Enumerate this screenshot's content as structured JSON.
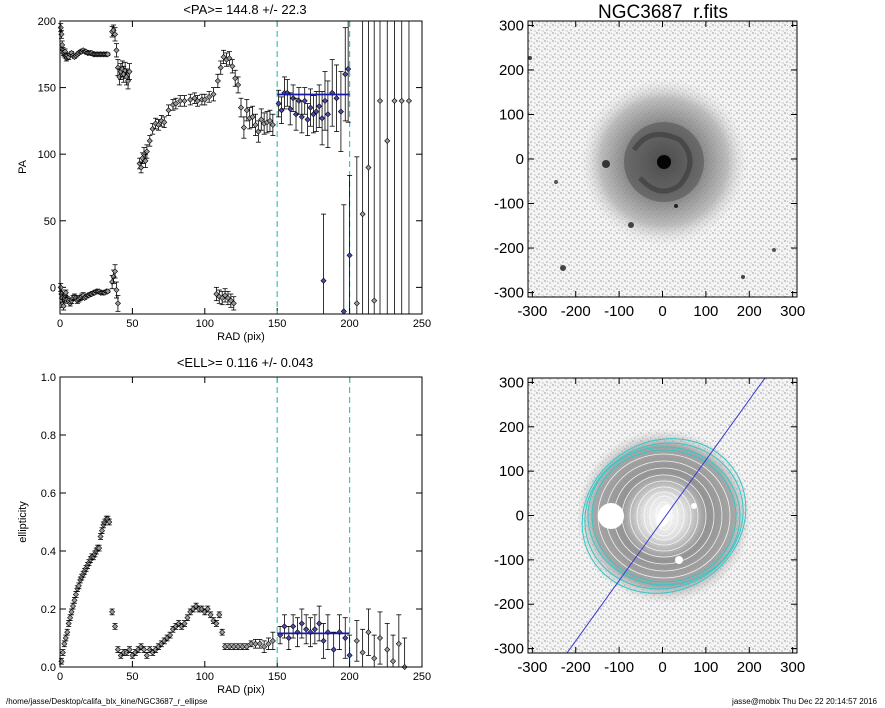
{
  "footer": {
    "path": "/home/jasse/Desktop/califa_blx_kine/NGC3687_r_ellipse",
    "stamp": "jasse@mobix  Thu Dec 22 20:14:57 2016"
  },
  "colors": {
    "cyan": "#33c8c8",
    "blue": "#1a1aa8",
    "mark_fill": "#999999"
  },
  "chart_data": [
    {
      "type": "scatter",
      "title": "<PA>= 144.8 +/-  22.3",
      "xlabel": "RAD (pix)",
      "ylabel": "PA",
      "xlim": [
        0,
        250
      ],
      "ylim": [
        -20,
        200
      ],
      "xticks": [
        0,
        50,
        100,
        150,
        200,
        250
      ],
      "yticks": [
        0,
        50,
        100,
        150,
        200
      ],
      "vlines_cyan_dashed": [
        150,
        200
      ],
      "mean_line": {
        "x": [
          150,
          200
        ],
        "y": 144.8
      },
      "series": [
        {
          "x": [
            0.5,
            1,
            1.5,
            2,
            2.5,
            3,
            3.5,
            4,
            4.5,
            5,
            6,
            7,
            8,
            9,
            10,
            11,
            12,
            13,
            14,
            15,
            16,
            17,
            18,
            19,
            20,
            21,
            22,
            23,
            24,
            25,
            26,
            27,
            28,
            29,
            30,
            31,
            32,
            33
          ],
          "y": [
            195,
            190,
            182,
            178,
            176,
            175,
            177,
            174,
            172,
            174,
            173,
            175,
            176,
            174,
            173,
            174,
            175,
            176,
            177,
            177,
            178,
            177,
            177,
            176,
            176,
            176,
            176,
            175,
            175,
            175,
            175,
            175,
            175,
            175,
            175,
            175,
            175,
            175
          ],
          "err": [
            3,
            3,
            3,
            2,
            2,
            2,
            2,
            2,
            2,
            2,
            2,
            1,
            1,
            1,
            1,
            1,
            1,
            1,
            1,
            1,
            1,
            1,
            1,
            1,
            1,
            1,
            1,
            1,
            1,
            1,
            1,
            1,
            1,
            1,
            1,
            1,
            1,
            1
          ]
        },
        {
          "x": [
            0.5,
            1,
            1.5,
            2,
            2.5,
            3,
            3.5,
            4,
            5,
            6,
            7,
            8,
            9,
            10,
            11,
            12,
            13,
            14,
            15,
            16,
            17,
            18,
            19,
            20,
            21,
            22,
            23,
            24,
            25,
            26,
            27,
            28,
            29,
            30,
            31,
            32,
            33
          ],
          "y": [
            0,
            -5,
            -8,
            -12,
            -14,
            -8,
            -6,
            -4,
            -9,
            -10,
            -12,
            -10,
            -8,
            -7,
            -8,
            -10,
            -9,
            -8,
            -7,
            -6,
            -8,
            -7,
            -6,
            -6,
            -5,
            -5,
            -4,
            -4,
            -3,
            -3,
            -3,
            -4,
            -4,
            -4,
            -4,
            -3,
            -3
          ],
          "err": [
            3,
            3,
            3,
            3,
            3,
            3,
            2,
            2,
            2,
            2,
            2,
            2,
            2,
            2,
            2,
            2,
            2,
            2,
            2,
            2,
            1,
            1,
            1,
            1,
            1,
            1,
            1,
            1,
            1,
            1,
            1,
            1,
            1,
            1,
            1,
            1,
            1
          ]
        },
        {
          "x": [
            36,
            37,
            38,
            39,
            40,
            41,
            42,
            43,
            44,
            45,
            46,
            47,
            48
          ],
          "y": [
            192,
            193,
            190,
            178,
            165,
            158,
            162,
            164,
            160,
            163,
            158,
            155,
            162
          ],
          "err": [
            4,
            4,
            5,
            5,
            6,
            6,
            6,
            6,
            6,
            6,
            6,
            6,
            6
          ]
        },
        {
          "x": [
            36,
            37,
            38,
            39,
            40
          ],
          "y": [
            4,
            8,
            12,
            -2,
            -12
          ],
          "err": [
            5,
            5,
            5,
            6,
            6
          ]
        },
        {
          "x": [
            55,
            56,
            57,
            58,
            59,
            60,
            62,
            64,
            66,
            68,
            70,
            72,
            75,
            78,
            80,
            83,
            86,
            90,
            93,
            95,
            98,
            100,
            103,
            106,
            109,
            111,
            113,
            115,
            117,
            119,
            121,
            123,
            125,
            127,
            129,
            131,
            133,
            135,
            137,
            139,
            141,
            143,
            145,
            147
          ],
          "y": [
            93,
            90,
            97,
            100,
            95,
            102,
            110,
            119,
            123,
            122,
            125,
            124,
            133,
            137,
            138,
            140,
            140,
            141,
            142,
            140,
            141,
            141,
            143,
            145,
            155,
            165,
            173,
            171,
            172,
            166,
            157,
            152,
            135,
            120,
            133,
            127,
            128,
            122,
            117,
            126,
            123,
            124,
            125,
            122
          ],
          "err": [
            4,
            4,
            4,
            5,
            5,
            5,
            4,
            4,
            4,
            4,
            4,
            4,
            4,
            4,
            4,
            4,
            4,
            4,
            4,
            4,
            4,
            4,
            4,
            5,
            5,
            5,
            5,
            5,
            5,
            5,
            6,
            6,
            7,
            8,
            8,
            8,
            8,
            8,
            8,
            8,
            8,
            8,
            8,
            8
          ]
        },
        {
          "x": [
            108,
            110,
            112,
            114,
            116,
            118,
            120
          ],
          "y": [
            -5,
            -7,
            -8,
            -6,
            -8,
            -10,
            -12
          ],
          "err": [
            5,
            5,
            5,
            5,
            5,
            5,
            5
          ]
        },
        {
          "x": [
            151,
            153,
            155,
            157,
            159,
            161,
            163,
            165,
            167,
            169,
            171,
            173,
            175,
            177,
            179,
            181,
            183,
            185,
            188,
            191,
            194,
            197,
            199
          ],
          "y": [
            138,
            133,
            146,
            146,
            134,
            142,
            130,
            140,
            128,
            140,
            126,
            135,
            130,
            132,
            136,
            127,
            140,
            130,
            146,
            142,
            132,
            160,
            164
          ],
          "err": [
            10,
            10,
            12,
            10,
            12,
            10,
            12,
            10,
            12,
            10,
            12,
            14,
            14,
            15,
            16,
            20,
            22,
            25,
            25,
            25,
            30,
            35,
            40
          ]
        },
        {
          "x": [
            182,
            196,
            200,
            205,
            209,
            213,
            217,
            221,
            226,
            231,
            236,
            241
          ],
          "y": [
            5,
            -18,
            24,
            -12,
            55,
            90,
            -10,
            140,
            110,
            140,
            140,
            140
          ],
          "err": [
            50,
            80,
            60,
            110,
            150,
            200,
            250,
            300,
            320,
            320,
            330,
            330
          ]
        }
      ]
    },
    {
      "type": "image",
      "title": "NGC3687_r.fits",
      "xlim": [
        -310,
        310
      ],
      "ylim": [
        -310,
        310
      ],
      "xticks": [
        -300,
        -200,
        -100,
        0,
        100,
        200,
        300
      ],
      "yticks": [
        -300,
        -200,
        -100,
        0,
        100,
        200,
        300
      ]
    },
    {
      "type": "scatter",
      "title": "<ELL>= 0.116 +/-  0.043",
      "xlabel": "RAD (pix)",
      "ylabel": "ellipticity",
      "xlim": [
        0,
        250
      ],
      "ylim": [
        0,
        1
      ],
      "xticks": [
        0,
        50,
        100,
        150,
        200,
        250
      ],
      "yticks": [
        0.0,
        0.2,
        0.4,
        0.6,
        0.8,
        1.0
      ],
      "vlines_cyan_dashed": [
        150,
        200
      ],
      "mean_line": {
        "x": [
          150,
          200
        ],
        "y": 0.116
      },
      "series": [
        {
          "x": [
            1,
            2,
            3,
            4,
            5,
            6,
            7,
            8,
            9,
            10,
            11,
            12,
            13,
            14,
            15,
            16,
            17,
            18,
            19,
            20,
            21,
            22,
            23,
            24,
            25,
            26,
            27,
            28,
            29,
            30,
            31,
            32,
            33,
            34
          ],
          "y": [
            0.02,
            0.05,
            0.08,
            0.1,
            0.12,
            0.15,
            0.17,
            0.19,
            0.21,
            0.23,
            0.25,
            0.27,
            0.28,
            0.3,
            0.31,
            0.32,
            0.33,
            0.34,
            0.35,
            0.36,
            0.37,
            0.38,
            0.38,
            0.39,
            0.4,
            0.41,
            0.41,
            0.45,
            0.47,
            0.49,
            0.5,
            0.51,
            0.51,
            0.5
          ],
          "err": [
            0.01,
            0.01,
            0.01,
            0.01,
            0.01,
            0.01,
            0.01,
            0.01,
            0.01,
            0.01,
            0.01,
            0.01,
            0.01,
            0.01,
            0.01,
            0.01,
            0.01,
            0.01,
            0.01,
            0.01,
            0.01,
            0.01,
            0.01,
            0.01,
            0.01,
            0.01,
            0.01,
            0.01,
            0.01,
            0.01,
            0.01,
            0.01,
            0.01,
            0.01
          ]
        },
        {
          "x": [
            36,
            38,
            40,
            42,
            44,
            46,
            48,
            50,
            52,
            54,
            56,
            58,
            60,
            62,
            64,
            66,
            68,
            70,
            72,
            74,
            76,
            78,
            80,
            82,
            84,
            86,
            88,
            90,
            92,
            94,
            96,
            98,
            100,
            102,
            104,
            106,
            108,
            110,
            112
          ],
          "y": [
            0.19,
            0.14,
            0.06,
            0.04,
            0.05,
            0.05,
            0.06,
            0.04,
            0.05,
            0.06,
            0.07,
            0.06,
            0.04,
            0.06,
            0.05,
            0.06,
            0.07,
            0.08,
            0.09,
            0.1,
            0.11,
            0.13,
            0.14,
            0.15,
            0.14,
            0.15,
            0.17,
            0.19,
            0.2,
            0.21,
            0.2,
            0.2,
            0.19,
            0.2,
            0.18,
            0.16,
            0.15,
            0.18,
            0.12
          ],
          "err": [
            0.01,
            0.01,
            0.01,
            0.01,
            0.01,
            0.01,
            0.01,
            0.01,
            0.01,
            0.01,
            0.01,
            0.01,
            0.01,
            0.01,
            0.01,
            0.01,
            0.01,
            0.01,
            0.01,
            0.01,
            0.01,
            0.01,
            0.01,
            0.01,
            0.01,
            0.01,
            0.01,
            0.01,
            0.01,
            0.01,
            0.01,
            0.01,
            0.01,
            0.01,
            0.01,
            0.01,
            0.01,
            0.01,
            0.01
          ]
        },
        {
          "x": [
            114,
            117,
            120,
            123,
            126,
            129,
            132,
            135,
            138,
            141,
            144,
            147
          ],
          "y": [
            0.07,
            0.07,
            0.07,
            0.07,
            0.07,
            0.07,
            0.08,
            0.08,
            0.08,
            0.07,
            0.08,
            0.09
          ],
          "err": [
            0.01,
            0.01,
            0.01,
            0.01,
            0.01,
            0.01,
            0.01,
            0.015,
            0.015,
            0.02,
            0.02,
            0.03
          ]
        },
        {
          "x": [
            152,
            155,
            158,
            161,
            164,
            167,
            170,
            173,
            176,
            179,
            182,
            185,
            189,
            193,
            197,
            200,
            205,
            209,
            213,
            217,
            221,
            226,
            230,
            234,
            238
          ],
          "y": [
            0.11,
            0.14,
            0.1,
            0.14,
            0.12,
            0.15,
            0.13,
            0.12,
            0.13,
            0.15,
            0.09,
            0.12,
            0.06,
            0.12,
            0.1,
            0.04,
            0.09,
            0.05,
            0.12,
            0.03,
            0.1,
            0.06,
            0.02,
            0.08,
            0.0
          ],
          "err": [
            0.03,
            0.04,
            0.04,
            0.04,
            0.05,
            0.05,
            0.05,
            0.05,
            0.05,
            0.06,
            0.06,
            0.06,
            0.06,
            0.06,
            0.07,
            0.07,
            0.07,
            0.08,
            0.08,
            0.08,
            0.09,
            0.09,
            0.09,
            0.1,
            0.1
          ]
        }
      ]
    },
    {
      "type": "image",
      "title": "",
      "xlim": [
        -310,
        310
      ],
      "ylim": [
        -310,
        310
      ],
      "xticks": [
        -300,
        -200,
        -100,
        0,
        100,
        200,
        300
      ],
      "yticks": [
        -300,
        -200,
        -100,
        0,
        100,
        200,
        300
      ],
      "pa_line_deg": 144.8
    }
  ]
}
